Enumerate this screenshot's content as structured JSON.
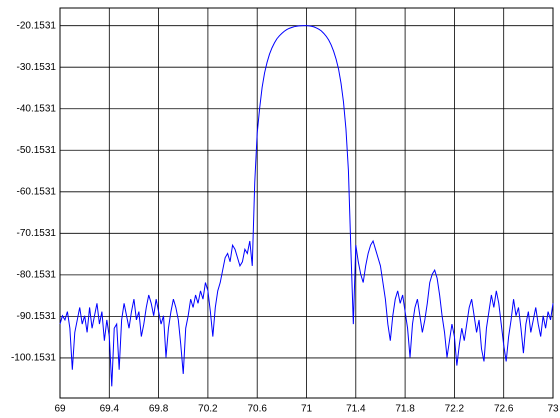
{
  "chart_data": {
    "type": "line",
    "color": "#0000ff",
    "grid": true,
    "xlim": [
      69,
      73
    ],
    "xticks": [
      69,
      69.4,
      69.8,
      70.2,
      70.6,
      71,
      71.4,
      71.8,
      72.2,
      72.6,
      73
    ],
    "ylim": [
      -109.8,
      -15.9
    ],
    "yticks": [
      -20.1531,
      -30.1531,
      -40.1531,
      -50.1531,
      -60.1531,
      -70.1531,
      -80.1531,
      -90.1531,
      -100.1531
    ],
    "x": [
      69.0,
      69.02,
      69.04,
      69.06,
      69.08,
      69.1,
      69.12,
      69.14,
      69.16,
      69.18,
      69.2,
      69.22,
      69.24,
      69.26,
      69.28,
      69.3,
      69.32,
      69.34,
      69.36,
      69.38,
      69.4,
      69.42,
      69.44,
      69.46,
      69.48,
      69.5,
      69.52,
      69.54,
      69.56,
      69.58,
      69.6,
      69.62,
      69.64,
      69.66,
      69.68,
      69.7,
      69.72,
      69.74,
      69.76,
      69.78,
      69.8,
      69.82,
      69.84,
      69.86,
      69.88,
      69.9,
      69.92,
      69.94,
      69.96,
      69.98,
      70.0,
      70.02,
      70.04,
      70.06,
      70.08,
      70.1,
      70.12,
      70.14,
      70.16,
      70.18,
      70.2,
      70.22,
      70.24,
      70.26,
      70.28,
      70.3,
      70.32,
      70.34,
      70.36,
      70.38,
      70.4,
      70.42,
      70.44,
      70.46,
      70.48,
      70.5,
      70.52,
      70.54,
      70.56,
      70.58,
      70.6,
      70.62,
      70.64,
      70.66,
      70.68,
      70.7,
      70.72,
      70.74,
      70.76,
      70.78,
      70.8,
      70.82,
      70.84,
      70.86,
      70.88,
      70.9,
      70.92,
      70.94,
      70.96,
      70.98,
      71.0,
      71.02,
      71.04,
      71.06,
      71.08,
      71.1,
      71.12,
      71.14,
      71.16,
      71.18,
      71.2,
      71.22,
      71.24,
      71.26,
      71.28,
      71.3,
      71.32,
      71.34,
      71.36,
      71.38,
      71.4,
      71.42,
      71.44,
      71.46,
      71.48,
      71.5,
      71.52,
      71.54,
      71.56,
      71.58,
      71.6,
      71.62,
      71.64,
      71.66,
      71.68,
      71.7,
      71.72,
      71.74,
      71.76,
      71.78,
      71.8,
      71.82,
      71.84,
      71.86,
      71.88,
      71.9,
      71.92,
      71.94,
      71.96,
      71.98,
      72.0,
      72.02,
      72.04,
      72.06,
      72.08,
      72.1,
      72.12,
      72.14,
      72.16,
      72.18,
      72.2,
      72.22,
      72.24,
      72.26,
      72.28,
      72.3,
      72.32,
      72.34,
      72.36,
      72.38,
      72.4,
      72.42,
      72.44,
      72.46,
      72.48,
      72.5,
      72.52,
      72.54,
      72.56,
      72.58,
      72.6,
      72.62,
      72.64,
      72.66,
      72.68,
      72.7,
      72.72,
      72.74,
      72.76,
      72.78,
      72.8,
      72.82,
      72.84,
      72.86,
      72.88,
      72.9,
      72.92,
      72.94,
      72.96,
      72.98,
      73.0
    ],
    "values": [
      -92,
      -90,
      -91,
      -89,
      -93,
      -103,
      -94,
      -91,
      -88,
      -92,
      -90,
      -94,
      -88,
      -93,
      -90,
      -87,
      -92,
      -89,
      -96,
      -91,
      -95,
      -107,
      -93,
      -92,
      -103,
      -91,
      -87,
      -90,
      -93,
      -89,
      -86,
      -91,
      -89,
      -95,
      -92,
      -88,
      -85,
      -87,
      -90,
      -86,
      -89,
      -92,
      -90,
      -100,
      -93,
      -89,
      -86,
      -88,
      -91,
      -97,
      -104,
      -93,
      -90,
      -86,
      -88,
      -85,
      -87,
      -84,
      -86,
      -82,
      -84,
      -89,
      -95,
      -88,
      -84,
      -82,
      -79,
      -76,
      -75,
      -77,
      -73,
      -74,
      -76,
      -78,
      -77,
      -74,
      -75,
      -72,
      -78,
      -58,
      -46,
      -40,
      -35,
      -31.5,
      -29,
      -27,
      -25.5,
      -24.3,
      -23.3,
      -22.6,
      -22,
      -21.5,
      -21.1,
      -20.8,
      -20.6,
      -20.4,
      -20.3,
      -20.2,
      -20.17,
      -20.155,
      -20.1531,
      -20.2,
      -20.3,
      -20.45,
      -20.7,
      -21,
      -21.4,
      -22,
      -22.7,
      -23.6,
      -24.8,
      -26.3,
      -28.2,
      -30.6,
      -34,
      -38.5,
      -45,
      -55,
      -74,
      -92,
      -73,
      -77,
      -80,
      -82,
      -78,
      -75,
      -73,
      -72,
      -74,
      -76,
      -78,
      -82,
      -86,
      -92,
      -96,
      -90,
      -86,
      -84,
      -87,
      -85,
      -89,
      -93,
      -100,
      -92,
      -88,
      -86,
      -90,
      -94,
      -91,
      -87,
      -82,
      -80,
      -79,
      -81,
      -85,
      -90,
      -94,
      -100,
      -96,
      -92,
      -95,
      -102,
      -97,
      -93,
      -96,
      -92,
      -88,
      -86,
      -90,
      -94,
      -91,
      -98,
      -101,
      -93,
      -89,
      -85,
      -88,
      -84,
      -87,
      -92,
      -97,
      -101,
      -95,
      -91,
      -86,
      -90,
      -88,
      -93,
      -99,
      -92,
      -89,
      -94,
      -91,
      -88,
      -92,
      -95,
      -90,
      -93,
      -89,
      -91,
      -87
    ]
  }
}
